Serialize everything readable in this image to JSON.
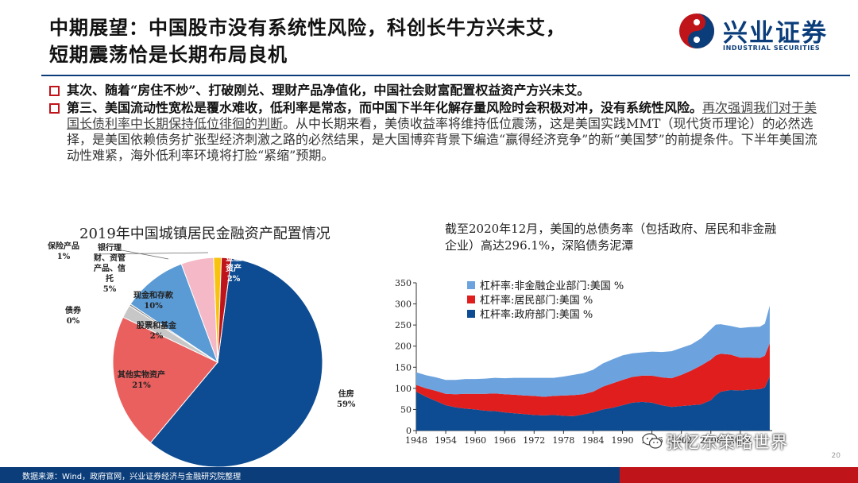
{
  "header": {
    "title_line1": "中期展望：中国股市没有系统性风险，科创长牛方兴未艾，",
    "title_line2": "短期震荡恰是长期布局良机",
    "logo_cn": "兴业证券",
    "logo_en": "INDUSTRIAL SECURITIES",
    "brand_blue": "#0b3d7a",
    "brand_red": "#c0141b"
  },
  "bullets": {
    "b1": "其次、随着“房住不炒”、打破刚兑、理财产品净值化，中国社会财富配置权益资产方兴未艾。",
    "b2_bold": "第三、美国流动性宽松是覆水难收，低利率是常态，而中国下半年化解存量风险时会积极对冲，没有系统性风险。",
    "b2_underline": "再次强调我们对于美国长债利率中长期保持低位徘徊的判断",
    "b2_rest": "。从中长期来看，美债收益率将维持低位震荡，这是美国实践MMT（现代货币理论）的必然选择，是美国依赖债务扩张型经济刺激之路的必然结果，是大国博弈背景下编造“赢得经济竞争”的新“美国梦”的前提条件。下半年美国流动性难紧，海外低利率环境将打脸“紧缩”预期。"
  },
  "chart_data": [
    {
      "type": "pie",
      "title": "2019年中国城镇居民金融资产配置情况",
      "slices": [
        {
          "label": "住房",
          "pct_label": "59%",
          "value": 59,
          "color": "#0d4c92"
        },
        {
          "label": "其他实物资产",
          "pct_label": "21%",
          "value": 21,
          "color": "#e9605f"
        },
        {
          "label": "股票和基金",
          "pct_label": "2%",
          "value": 2,
          "color": "#c7c7c7"
        },
        {
          "label": "债券",
          "pct_label": "0%",
          "value": 0.3,
          "color": "#8a8a8a"
        },
        {
          "label": "现金和存款",
          "pct_label": "10%",
          "value": 10,
          "color": "#5b9bd5"
        },
        {
          "label": "银行理财、资管产品、信托",
          "pct_label": "5%",
          "value": 5,
          "color": "#f5b8c7"
        },
        {
          "label": "保险产品",
          "pct_label": "1%",
          "value": 1.2,
          "color": "#f7c30f"
        },
        {
          "label": "其他金融资产",
          "pct_label": "2%",
          "value": 1.5,
          "color": "#c0141b"
        }
      ]
    },
    {
      "type": "area",
      "title": "截至2020年12月，美国的总债务率（包括政府、居民和非金融企业）高达296.1%，深陷债务泥潭",
      "ylim": [
        0,
        350
      ],
      "yticks": [
        0,
        50,
        100,
        150,
        200,
        250,
        300,
        350
      ],
      "xticks": [
        "1948",
        "1954",
        "1960",
        "1966",
        "1972",
        "1978",
        "1984",
        "1990",
        "1996",
        "2002",
        "2008",
        "2014"
      ],
      "x": [
        1948,
        1950,
        1952,
        1954,
        1956,
        1958,
        1960,
        1962,
        1964,
        1966,
        1968,
        1970,
        1972,
        1974,
        1976,
        1978,
        1980,
        1982,
        1984,
        1986,
        1988,
        1990,
        1992,
        1994,
        1996,
        1998,
        2000,
        2002,
        2004,
        2006,
        2008,
        2009,
        2010,
        2012,
        2014,
        2016,
        2018,
        2019,
        2020
      ],
      "series": [
        {
          "name": "杠杆率:政府部门:美国 %",
          "color": "#0d4c92",
          "values": [
            92,
            80,
            70,
            60,
            55,
            52,
            50,
            47,
            46,
            43,
            41,
            39,
            37,
            36,
            37,
            35,
            34,
            38,
            43,
            50,
            54,
            60,
            66,
            68,
            66,
            60,
            56,
            58,
            60,
            62,
            72,
            84,
            92,
            96,
            95,
            97,
            98,
            102,
            128
          ]
        },
        {
          "name": "杠杆率:居民部门:美国 %",
          "color": "#e01e1e",
          "values": [
            16,
            20,
            24,
            27,
            31,
            35,
            37,
            40,
            42,
            43,
            44,
            44,
            45,
            44,
            45,
            48,
            50,
            48,
            49,
            54,
            58,
            60,
            61,
            62,
            64,
            66,
            68,
            74,
            82,
            92,
            96,
            94,
            90,
            84,
            78,
            76,
            74,
            75,
            79
          ]
        },
        {
          "name": "杠杆率:非金融企业部门:美国 %",
          "color": "#6ca3de",
          "values": [
            30,
            31,
            32,
            33,
            34,
            35,
            35,
            36,
            37,
            38,
            40,
            42,
            43,
            45,
            43,
            45,
            48,
            50,
            52,
            55,
            57,
            58,
            56,
            55,
            57,
            60,
            64,
            64,
            62,
            64,
            72,
            73,
            70,
            68,
            70,
            72,
            74,
            76,
            89
          ]
        }
      ]
    }
  ],
  "footer": {
    "source": "数据来源：Wind，政府官网，兴业证券经济与金融研究院整理",
    "page": "20",
    "watermark": "张忆东策略世界"
  }
}
